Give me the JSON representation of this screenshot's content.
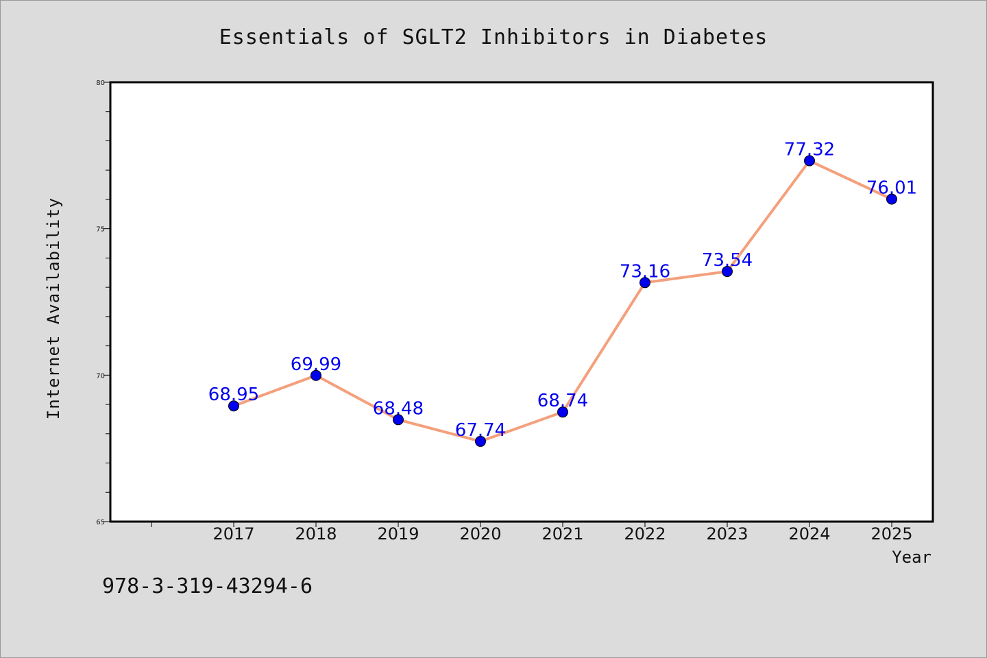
{
  "footer": {
    "isbn": "978-3-319-43294-6"
  },
  "chart_data": {
    "type": "line",
    "title": "Essentials of SGLT2 Inhibitors in Diabetes",
    "xlabel": "Year",
    "ylabel": "Internet Availability",
    "categories": [
      "2017",
      "2018",
      "2019",
      "2020",
      "2021",
      "2022",
      "2023",
      "2024",
      "2025"
    ],
    "series": [
      {
        "values": [
          68.95,
          69.99,
          68.48,
          67.74,
          68.74,
          73.16,
          73.54,
          77.32,
          76.01
        ],
        "labels": [
          "68.95",
          "69.99",
          "68.48",
          "67.74",
          "68.74",
          "73.16",
          "73.54",
          "77.32",
          "76.01"
        ],
        "line_color": "#f4a07c",
        "marker_color": "#0000ee"
      }
    ],
    "ylim": [
      65,
      80
    ],
    "y_ticks": [
      65,
      70,
      75,
      80
    ],
    "y_tick_labels": [
      "65",
      "70",
      "75",
      "80"
    ],
    "y_minor_step": 1,
    "grid": false,
    "legend": "none",
    "background": "#dcdcdc",
    "plot_background": "#ffffff",
    "label_color": "#0000ee"
  }
}
